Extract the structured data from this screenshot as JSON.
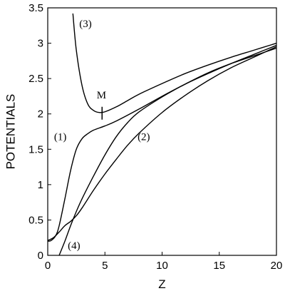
{
  "chart_data": {
    "type": "line",
    "title": "",
    "xlabel": "Z",
    "ylabel": "POTENTIALS",
    "xlim": [
      0,
      20
    ],
    "ylim": [
      0,
      3.5
    ],
    "xticks": [
      0,
      5,
      10,
      15,
      20
    ],
    "yticks": [
      0,
      0.5,
      1,
      1.5,
      2,
      2.5,
      3,
      3.5
    ],
    "xtick_labels": [
      "0",
      "5",
      "10",
      "15",
      "20"
    ],
    "ytick_labels": [
      "0",
      "0.5",
      "1",
      "1.5",
      "2",
      "2.5",
      "3",
      "3.5"
    ],
    "grid": false,
    "legend": "none",
    "series": [
      {
        "id": "curve-3",
        "x": [
          2.2,
          2.5,
          3.0,
          3.5,
          4.0,
          4.5,
          5.0,
          6.0,
          7.0,
          8.0,
          10.0,
          12.0,
          14.0,
          16.0,
          18.0,
          20.0
        ],
        "y": [
          3.42,
          2.9,
          2.4,
          2.14,
          2.05,
          2.02,
          2.03,
          2.1,
          2.19,
          2.28,
          2.43,
          2.57,
          2.69,
          2.8,
          2.9,
          3.0
        ]
      },
      {
        "id": "curve-1",
        "x": [
          0.0,
          0.3,
          0.7,
          1.0,
          1.5,
          2.0,
          2.5,
          3.0,
          3.5,
          4.0,
          5.0,
          6.0,
          8.0,
          10.0,
          12.0,
          14.0,
          16.0,
          18.0,
          20.0
        ],
        "y": [
          0.2,
          0.21,
          0.28,
          0.42,
          0.8,
          1.2,
          1.5,
          1.65,
          1.72,
          1.77,
          1.83,
          1.9,
          2.07,
          2.25,
          2.42,
          2.57,
          2.71,
          2.84,
          2.97
        ]
      },
      {
        "id": "curve-2",
        "x": [
          0.0,
          0.5,
          1.0,
          1.5,
          2.0,
          2.5,
          3.0,
          4.0,
          5.0,
          6.0,
          7.0,
          8.0,
          10.0,
          12.0,
          14.0,
          16.0,
          18.0,
          20.0
        ],
        "y": [
          0.21,
          0.25,
          0.33,
          0.42,
          0.48,
          0.56,
          0.67,
          0.92,
          1.15,
          1.36,
          1.56,
          1.73,
          2.02,
          2.26,
          2.47,
          2.65,
          2.8,
          2.95
        ]
      },
      {
        "id": "curve-4",
        "x": [
          1.0,
          1.5,
          2.0,
          2.5,
          3.0,
          4.0,
          5.0,
          6.0,
          7.0,
          8.0,
          10.0,
          12.0,
          14.0,
          16.0,
          18.0,
          20.0
        ],
        "y": [
          0.0,
          0.2,
          0.42,
          0.62,
          0.8,
          1.12,
          1.42,
          1.68,
          1.88,
          2.03,
          2.24,
          2.42,
          2.58,
          2.71,
          2.82,
          2.93
        ]
      }
    ],
    "annotations": [
      {
        "text": "(3)",
        "x": 3.3,
        "y": 3.28
      },
      {
        "text": "M",
        "x": 4.7,
        "y": 2.27
      },
      {
        "text": "(1)",
        "x": 1.1,
        "y": 1.68
      },
      {
        "text": "(2)",
        "x": 8.4,
        "y": 1.68
      },
      {
        "text": "(4)",
        "x": 2.3,
        "y": 0.14
      }
    ],
    "marker": {
      "label": "M",
      "x": 4.75,
      "y": 2.01
    }
  }
}
